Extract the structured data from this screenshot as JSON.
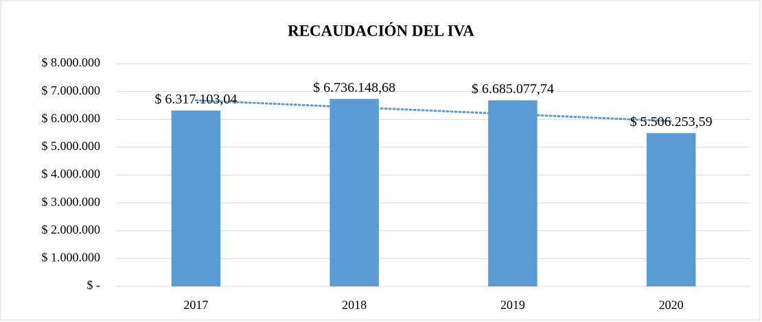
{
  "chart_data": {
    "type": "bar",
    "title": "RECAUDACIÓN DEL IVA",
    "categories": [
      "2017",
      "2018",
      "2019",
      "2020"
    ],
    "values": [
      6317103.04,
      6736148.68,
      6685077.74,
      5506253.59
    ],
    "value_labels": [
      "$ 6.317.103,04",
      "$ 6.736.148,68",
      "$ 6.685.077,74",
      "$ 5.506.253,59"
    ],
    "color": "#5b9bd5",
    "trendline": {
      "type": "linear",
      "color": "#5b9bd5"
    },
    "ylim": [
      0,
      8000000
    ],
    "yticks": [
      {
        "value": 0,
        "label": "$ -"
      },
      {
        "value": 1000000,
        "label": "$ 1.000.000"
      },
      {
        "value": 2000000,
        "label": "$ 2.000.000"
      },
      {
        "value": 3000000,
        "label": "$ 3.000.000"
      },
      {
        "value": 4000000,
        "label": "$ 4.000.000"
      },
      {
        "value": 5000000,
        "label": "$ 5.000.000"
      },
      {
        "value": 6000000,
        "label": "$ 6.000.000"
      },
      {
        "value": 7000000,
        "label": "$ 7.000.000"
      },
      {
        "value": 8000000,
        "label": "$ 8.000.000"
      }
    ],
    "grid": true
  }
}
